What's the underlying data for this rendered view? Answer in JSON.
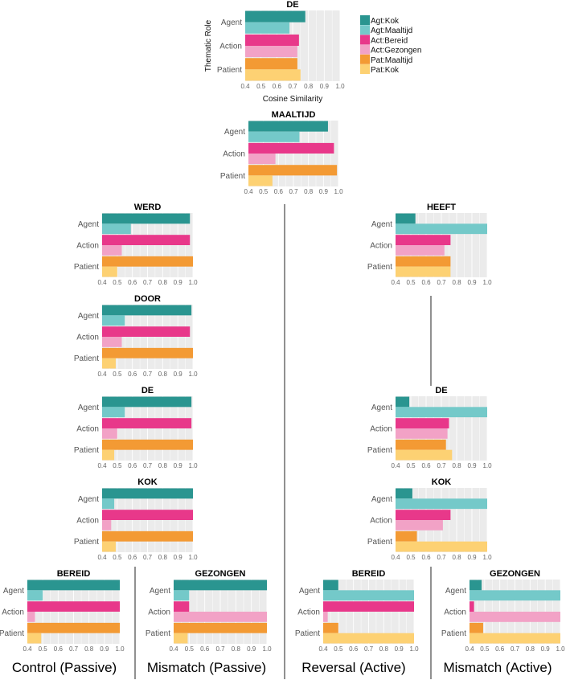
{
  "chart_data": {
    "type": "bar",
    "orientation": "horizontal",
    "xlabel": "Cosine Similarity",
    "ylabel": "Thematic Role",
    "xlim": [
      0.4,
      1.0
    ],
    "x_ticks": [
      "0.4",
      "0.5",
      "0.6",
      "0.7",
      "0.8",
      "0.9",
      "1.0"
    ],
    "roles": [
      "Agent",
      "Action",
      "Patient"
    ],
    "legend": [
      {
        "name": "Agt:Kok",
        "color": "#2a9590"
      },
      {
        "name": "Agt:Maaltijd",
        "color": "#74c9c9"
      },
      {
        "name": "Act:Bereid",
        "color": "#e8388a"
      },
      {
        "name": "Act:Gezongen",
        "color": "#f2a2c6"
      },
      {
        "name": "Pat:Maaltijd",
        "color": "#f39a34"
      },
      {
        "name": "Pat:Kok",
        "color": "#fdd173"
      }
    ],
    "panels": [
      {
        "id": "de_top",
        "title": "DE",
        "values": [
          [
            0.78,
            0.68
          ],
          [
            0.74,
            0.73
          ],
          [
            0.73,
            0.75
          ]
        ]
      },
      {
        "id": "maaltijd",
        "title": "MAALTIJD",
        "values": [
          [
            0.93,
            0.74
          ],
          [
            0.97,
            0.58
          ],
          [
            0.99,
            0.56
          ]
        ]
      },
      {
        "id": "werd",
        "title": "WERD",
        "values": [
          [
            0.98,
            0.59
          ],
          [
            0.98,
            0.53
          ],
          [
            1.0,
            0.5
          ]
        ]
      },
      {
        "id": "door",
        "title": "DOOR",
        "values": [
          [
            0.99,
            0.55
          ],
          [
            0.98,
            0.53
          ],
          [
            1.0,
            0.49
          ]
        ]
      },
      {
        "id": "de_passive",
        "title": "DE",
        "values": [
          [
            0.99,
            0.55
          ],
          [
            0.99,
            0.5
          ],
          [
            1.0,
            0.48
          ]
        ]
      },
      {
        "id": "kok_passive",
        "title": "KOK",
        "values": [
          [
            1.0,
            0.48
          ],
          [
            1.0,
            0.46
          ],
          [
            1.0,
            0.49
          ]
        ]
      },
      {
        "id": "bereid_passive",
        "title": "BEREID",
        "values": [
          [
            1.0,
            0.5
          ],
          [
            1.0,
            0.45
          ],
          [
            1.0,
            0.49
          ]
        ]
      },
      {
        "id": "gezongen_passive",
        "title": "GEZONGEN",
        "values": [
          [
            1.0,
            0.5
          ],
          [
            0.5,
            1.0
          ],
          [
            1.0,
            0.49
          ]
        ]
      },
      {
        "id": "heeft",
        "title": "HEEFT",
        "values": [
          [
            0.53,
            1.0
          ],
          [
            0.76,
            0.72
          ],
          [
            0.76,
            0.76
          ]
        ]
      },
      {
        "id": "de_active",
        "title": "DE",
        "values": [
          [
            0.49,
            1.0
          ],
          [
            0.75,
            0.74
          ],
          [
            0.73,
            0.77
          ]
        ]
      },
      {
        "id": "kok_active",
        "title": "KOK",
        "values": [
          [
            0.51,
            1.0
          ],
          [
            0.76,
            0.71
          ],
          [
            0.54,
            1.0
          ]
        ]
      },
      {
        "id": "bereid_active",
        "title": "BEREID",
        "values": [
          [
            0.5,
            1.0
          ],
          [
            1.0,
            0.43
          ],
          [
            0.5,
            1.0
          ]
        ]
      },
      {
        "id": "gezongen_active",
        "title": "GEZONGEN",
        "values": [
          [
            0.48,
            1.0
          ],
          [
            0.43,
            1.0
          ],
          [
            0.49,
            1.0
          ]
        ]
      }
    ],
    "conditions": [
      "Control (Passive)",
      "Mismatch (Passive)",
      "Reversal (Active)",
      "Mismatch (Active)"
    ]
  }
}
